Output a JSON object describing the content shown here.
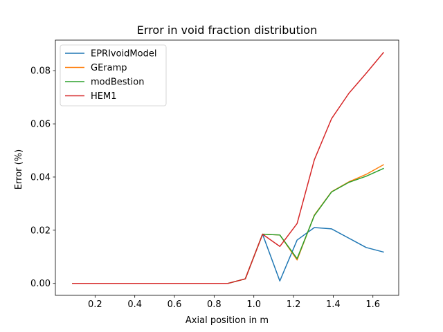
{
  "chart_data": {
    "type": "line",
    "title": "Error in void fraction distribution",
    "xlabel": "Axial position in m",
    "ylabel": "Error (%)",
    "xlim": [
      0.0,
      1.73
    ],
    "ylim": [
      -0.0045,
      0.0915
    ],
    "xticks": [
      0.2,
      0.4,
      0.6,
      0.8,
      1.0,
      1.2,
      1.4,
      1.6
    ],
    "xtick_labels": [
      "0.2",
      "0.4",
      "0.6",
      "0.8",
      "1.0",
      "1.2",
      "1.4",
      "1.6"
    ],
    "yticks": [
      0.0,
      0.02,
      0.04,
      0.06,
      0.08
    ],
    "ytick_labels": [
      "0.00",
      "0.02",
      "0.04",
      "0.06",
      "0.08"
    ],
    "grid": false,
    "legend_position": "top-left",
    "x": [
      0.087,
      0.174,
      0.261,
      0.348,
      0.435,
      0.522,
      0.609,
      0.696,
      0.783,
      0.87,
      0.957,
      1.044,
      1.131,
      1.218,
      1.305,
      1.392,
      1.479,
      1.566,
      1.653
    ],
    "series": [
      {
        "name": "EPRIvoidModel",
        "color": "#1f77b4",
        "values": [
          0,
          0,
          0,
          0,
          0,
          0,
          0,
          0,
          0,
          0,
          0.0017,
          0.0185,
          0.0009,
          0.0163,
          0.021,
          0.0205,
          0.017,
          0.0135,
          0.0118
        ]
      },
      {
        "name": "GEramp",
        "color": "#ff7f0e",
        "values": [
          0,
          0,
          0,
          0,
          0,
          0,
          0,
          0,
          0,
          0,
          0.0017,
          0.0185,
          0.0182,
          0.0088,
          0.0257,
          0.0345,
          0.0382,
          0.041,
          0.0446
        ]
      },
      {
        "name": "modBestion",
        "color": "#2ca02c",
        "values": [
          0,
          0,
          0,
          0,
          0,
          0,
          0,
          0,
          0,
          0,
          0.0017,
          0.0185,
          0.0182,
          0.0093,
          0.0255,
          0.0344,
          0.038,
          0.0403,
          0.0432
        ]
      },
      {
        "name": "HEM1",
        "color": "#d62728",
        "values": [
          0,
          0,
          0,
          0,
          0,
          0,
          0,
          0,
          0,
          0,
          0.0017,
          0.0185,
          0.0139,
          0.0225,
          0.0465,
          0.062,
          0.0715,
          0.079,
          0.0868
        ]
      }
    ]
  }
}
